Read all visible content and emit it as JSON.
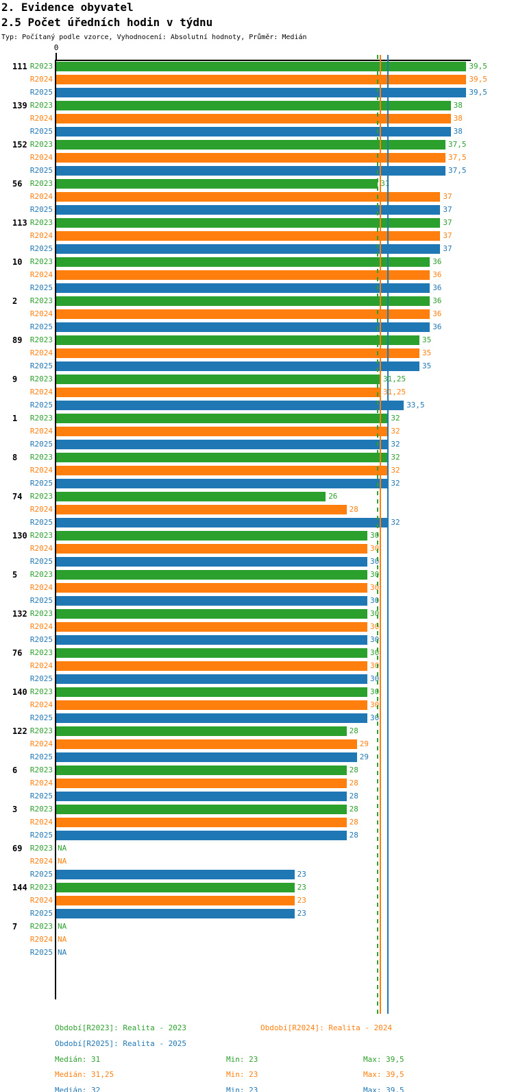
{
  "header": {
    "title1": "2. Evidence obyvatel",
    "title2": "2.5 Počet úředních hodin v týdnu",
    "subtitle": "Typ: Počítaný podle vzorce, Vyhodnocení: Absolutní hodnoty, Průměr: Medián"
  },
  "axis": {
    "origin_label": "0"
  },
  "chart_data": {
    "type": "bar",
    "orientation": "horizontal",
    "title": "2.5 Počet úředních hodin v týdnu",
    "xlim": [
      0,
      39.9
    ],
    "grid": false,
    "categories": [
      "111",
      "139",
      "152",
      "56",
      "113",
      "10",
      "2",
      "89",
      "9",
      "1",
      "8",
      "74",
      "130",
      "5",
      "132",
      "76",
      "140",
      "122",
      "6",
      "3",
      "69",
      "144",
      "7"
    ],
    "series": [
      {
        "name": "R2023",
        "color": "#2ca02c",
        "median": 31,
        "median_line_style": "dashed",
        "values": [
          39.5,
          38,
          37.5,
          31,
          37,
          36,
          36,
          35,
          31.25,
          32,
          32,
          26,
          30,
          30,
          30,
          30,
          30,
          28,
          28,
          28,
          null,
          23,
          null
        ],
        "labels": [
          "39,5",
          "38",
          "37,5",
          "31",
          "37",
          "36",
          "36",
          "35",
          "31,25",
          "32",
          "32",
          "26",
          "30",
          "30",
          "30",
          "30",
          "30",
          "28",
          "28",
          "28",
          "NA",
          "23",
          "NA"
        ]
      },
      {
        "name": "R2024",
        "color": "#ff7f0e",
        "median": 31.25,
        "median_line_style": "solid",
        "values": [
          39.5,
          38,
          37.5,
          37,
          37,
          36,
          36,
          35,
          31.25,
          32,
          32,
          28,
          30,
          30,
          30,
          30,
          30,
          29,
          28,
          28,
          null,
          23,
          null
        ],
        "labels": [
          "39,5",
          "38",
          "37,5",
          "37",
          "37",
          "36",
          "36",
          "35",
          "31,25",
          "32",
          "32",
          "28",
          "30",
          "30",
          "30",
          "30",
          "30",
          "29",
          "28",
          "28",
          "NA",
          "23",
          "NA"
        ]
      },
      {
        "name": "R2025",
        "color": "#1f77b4",
        "median": 32,
        "median_line_style": "solid",
        "values": [
          39.5,
          38,
          37.5,
          37,
          37,
          36,
          36,
          35,
          33.5,
          32,
          32,
          32,
          30,
          30,
          30,
          30,
          30,
          29,
          28,
          28,
          23,
          23,
          null
        ],
        "labels": [
          "39,5",
          "38",
          "37,5",
          "37",
          "37",
          "36",
          "36",
          "35",
          "33,5",
          "32",
          "32",
          "32",
          "30",
          "30",
          "30",
          "30",
          "30",
          "29",
          "28",
          "28",
          "23",
          "23",
          "NA"
        ]
      }
    ]
  },
  "footer": {
    "legends": [
      {
        "text": "Období[R2023]: Realita - 2023",
        "color": "#2ca02c"
      },
      {
        "text": "Období[R2024]: Realita - 2024",
        "color": "#ff7f0e"
      },
      {
        "text": "Období[R2025]: Realita - 2025",
        "color": "#1f77b4"
      }
    ],
    "stats": [
      {
        "median": "Medián: 31",
        "min": "Min: 23",
        "max": "Max: 39,5",
        "color": "#2ca02c"
      },
      {
        "median": "Medián: 31,25",
        "min": "Min: 23",
        "max": "Max: 39,5",
        "color": "#ff7f0e"
      },
      {
        "median": "Medián: 32",
        "min": "Min: 23",
        "max": "Max: 39,5",
        "color": "#1f77b4"
      }
    ]
  }
}
